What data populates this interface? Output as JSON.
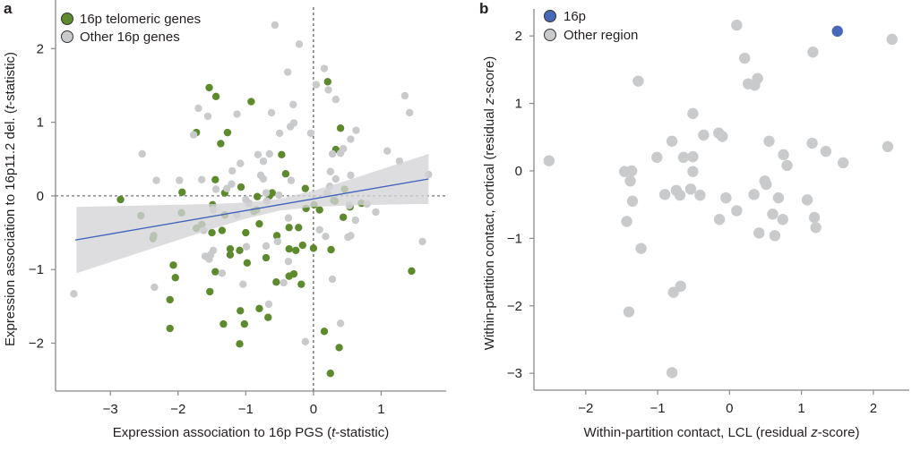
{
  "colors": {
    "telomeric": "#5e8a2e",
    "other": "#c9cacc",
    "highlight": "#4769b8",
    "fit_line": "#3d62b8",
    "band": "#d3d4d6"
  },
  "chart_data": [
    {
      "panel": "a",
      "type": "scatter",
      "xlabel": {
        "pre": "Expression association to 16p PGS (",
        "em": "t",
        "post": "-statistic)"
      },
      "ylabel": {
        "pre": "Expression association to 16p11.2 del. (",
        "em": "t",
        "post": "-statistic)"
      },
      "xlim": [
        -3.81,
        1.96
      ],
      "ylim": [
        -2.65,
        2.66
      ],
      "xticks": [
        -3,
        -2,
        -1,
        0,
        1
      ],
      "yticks": [
        -2,
        -1,
        0,
        1,
        2
      ],
      "xtick_labels": [
        "−3",
        "−2",
        "−1",
        "0",
        "1"
      ],
      "ytick_labels": [
        "−2",
        "−1",
        "0",
        "1",
        "2"
      ],
      "reference_lines": {
        "x": 0,
        "y": 0,
        "style": "dashed"
      },
      "legend": {
        "position": "top-left",
        "entries": [
          "16p telomeric genes",
          "Other 16p genes"
        ]
      },
      "series": [
        {
          "name": "16p telomeric genes",
          "color_key": "telomeric",
          "points": [
            [
              -1.54,
              1.47
            ],
            [
              -1.44,
              1.35
            ],
            [
              -0.92,
              1.28
            ],
            [
              -1.73,
              0.86
            ],
            [
              -1.27,
              0.86
            ],
            [
              -1.37,
              0.71
            ],
            [
              -0.47,
              0.56
            ],
            [
              -0.41,
              0.3
            ],
            [
              -1.45,
              0.22
            ],
            [
              -1.07,
              0.12
            ],
            [
              -1.94,
              0.05
            ],
            [
              -1.31,
              0.04
            ],
            [
              -0.83,
              -0.01
            ],
            [
              -0.61,
              0.04
            ],
            [
              -0.65,
              0.0
            ],
            [
              -0.12,
              0.1
            ],
            [
              0.21,
              1.55
            ],
            [
              0.4,
              0.92
            ],
            [
              0.33,
              0.63
            ],
            [
              -2.85,
              -0.05
            ],
            [
              0.46,
              0.09
            ],
            [
              0.3,
              -0.06
            ],
            [
              0.71,
              -0.1
            ],
            [
              -2.55,
              -0.27
            ],
            [
              -1.95,
              -0.23
            ],
            [
              -1.49,
              -0.12
            ],
            [
              -1.31,
              -0.26
            ],
            [
              -1.73,
              -0.44
            ],
            [
              -1.65,
              -0.39
            ],
            [
              -2.36,
              -0.54
            ],
            [
              -2.37,
              -0.58
            ],
            [
              -1.5,
              -0.5
            ],
            [
              -1.35,
              -0.47
            ],
            [
              -1.0,
              -0.5
            ],
            [
              -0.8,
              -0.38
            ],
            [
              -0.54,
              -0.54
            ],
            [
              -0.36,
              -0.43
            ],
            [
              -0.22,
              -0.43
            ],
            [
              -0.88,
              -0.21
            ],
            [
              -0.84,
              -0.19
            ],
            [
              -0.11,
              -0.17
            ],
            [
              0.01,
              -0.12
            ],
            [
              0.09,
              -0.19
            ],
            [
              0.32,
              -0.07
            ],
            [
              0.54,
              -0.15
            ],
            [
              0.44,
              -0.29
            ],
            [
              -1.23,
              -0.72
            ],
            [
              -1.23,
              -0.8
            ],
            [
              -1.09,
              -0.74
            ],
            [
              -0.36,
              -0.72
            ],
            [
              -0.26,
              -0.74
            ],
            [
              -0.16,
              -0.67
            ],
            [
              0.0,
              -0.71
            ],
            [
              0.26,
              -0.73
            ],
            [
              -0.98,
              -0.91
            ],
            [
              -0.7,
              -0.84
            ],
            [
              -2.07,
              -0.94
            ],
            [
              -2.04,
              -1.11
            ],
            [
              -1.45,
              -1.03
            ],
            [
              -0.36,
              -1.09
            ],
            [
              -0.29,
              -1.06
            ],
            [
              -0.55,
              -1.17
            ],
            [
              -0.18,
              -1.2
            ],
            [
              -1.53,
              -1.3
            ],
            [
              -2.12,
              -1.41
            ],
            [
              -1.08,
              -1.56
            ],
            [
              -0.8,
              -1.53
            ],
            [
              -0.67,
              -1.65
            ],
            [
              -1.33,
              -1.74
            ],
            [
              -1.02,
              -1.74
            ],
            [
              -2.12,
              -1.8
            ],
            [
              -1.09,
              -2.01
            ],
            [
              0.16,
              -1.84
            ],
            [
              0.38,
              -2.06
            ],
            [
              0.25,
              -2.41
            ],
            [
              1.45,
              -1.02
            ]
          ]
        },
        {
          "name": "Other 16p genes",
          "color_key": "other",
          "points": [
            [
              -0.57,
              2.32
            ],
            [
              -0.21,
              2.06
            ],
            [
              -0.38,
              1.68
            ],
            [
              0.16,
              1.73
            ],
            [
              0.04,
              1.51
            ],
            [
              0.22,
              1.44
            ],
            [
              0.33,
              1.31
            ],
            [
              1.35,
              1.36
            ],
            [
              1.42,
              1.13
            ],
            [
              -1.7,
              1.19
            ],
            [
              -1.56,
              1.08
            ],
            [
              -1.13,
              1.11
            ],
            [
              -0.62,
              1.13
            ],
            [
              -0.3,
              1.24
            ],
            [
              -0.29,
              0.99
            ],
            [
              -0.34,
              0.94
            ],
            [
              -0.5,
              0.85
            ],
            [
              -0.04,
              0.85
            ],
            [
              0.63,
              0.89
            ],
            [
              0.55,
              0.77
            ],
            [
              -1.77,
              0.83
            ],
            [
              -2.53,
              0.57
            ],
            [
              -0.82,
              0.56
            ],
            [
              -0.65,
              0.57
            ],
            [
              -0.74,
              0.47
            ],
            [
              -1.08,
              0.44
            ],
            [
              -1.2,
              0.34
            ],
            [
              0.28,
              0.57
            ],
            [
              0.4,
              0.58
            ],
            [
              0.44,
              0.64
            ],
            [
              1.09,
              0.61
            ],
            [
              1.27,
              0.47
            ],
            [
              0.25,
              0.33
            ],
            [
              0.33,
              0.23
            ],
            [
              0.55,
              0.28
            ],
            [
              1.7,
              0.29
            ],
            [
              -2.32,
              0.21
            ],
            [
              -1.98,
              0.21
            ],
            [
              -1.65,
              0.22
            ],
            [
              -0.78,
              0.28
            ],
            [
              -0.74,
              0.23
            ],
            [
              -0.33,
              0.21
            ],
            [
              -1.21,
              0.16
            ],
            [
              -1.28,
              0.1
            ],
            [
              -1.44,
              0.09
            ],
            [
              0.24,
              0.13
            ],
            [
              -0.7,
              0.04
            ],
            [
              -0.51,
              0.01
            ],
            [
              -1.0,
              -0.05
            ],
            [
              -0.95,
              -0.1
            ],
            [
              -0.69,
              -0.07
            ],
            [
              0.2,
              0.04
            ],
            [
              0.79,
              -0.11
            ],
            [
              0.53,
              -0.13
            ],
            [
              -1.48,
              -0.19
            ],
            [
              -1.62,
              -0.47
            ],
            [
              -1.13,
              -0.26
            ],
            [
              -0.37,
              -0.3
            ],
            [
              0.62,
              -0.33
            ],
            [
              0.92,
              -0.22
            ],
            [
              0.09,
              -0.46
            ],
            [
              0.18,
              -0.55
            ],
            [
              0.51,
              -0.56
            ],
            [
              0.55,
              -0.54
            ],
            [
              -0.53,
              -0.62
            ],
            [
              -0.7,
              -0.68
            ],
            [
              -0.99,
              -0.69
            ],
            [
              -1.48,
              -0.74
            ],
            [
              -1.6,
              -0.82
            ],
            [
              -1.54,
              -0.86
            ],
            [
              -1.52,
              -0.8
            ],
            [
              -0.37,
              -0.89
            ],
            [
              -1.35,
              -1.05
            ],
            [
              1.61,
              -0.62
            ],
            [
              -2.35,
              -1.24
            ],
            [
              -3.54,
              -1.33
            ],
            [
              -1.04,
              -1.2
            ],
            [
              -0.44,
              -1.18
            ],
            [
              0.28,
              -1.13
            ],
            [
              -0.66,
              -1.47
            ],
            [
              0.4,
              -1.73
            ],
            [
              -0.12,
              -1.98
            ]
          ]
        }
      ],
      "fit": {
        "line": [
          [
            -3.52,
            -0.6
          ],
          [
            1.7,
            0.23
          ]
        ],
        "band": {
          "x": [
            -3.5,
            -3.0,
            -2.5,
            -2.0,
            -1.5,
            -1.0,
            -0.5,
            0.0,
            0.5,
            1.0,
            1.5,
            1.7
          ],
          "lower": [
            -1.05,
            -0.9,
            -0.75,
            -0.6,
            -0.45,
            -0.31,
            -0.2,
            -0.15,
            -0.13,
            -0.12,
            -0.11,
            -0.11
          ],
          "upper": [
            -0.15,
            -0.14,
            -0.13,
            -0.12,
            -0.11,
            -0.09,
            -0.04,
            0.07,
            0.21,
            0.36,
            0.51,
            0.57
          ]
        }
      }
    },
    {
      "panel": "b",
      "type": "scatter",
      "xlabel": {
        "pre": "Within-partition contact, LCL (residual ",
        "em": "z",
        "post": "-score)"
      },
      "ylabel": {
        "pre": "Within-partition contact, cortical (residual ",
        "em": "z",
        "post": "-score)"
      },
      "xlim": [
        -2.72,
        2.5
      ],
      "ylim": [
        -3.25,
        2.4
      ],
      "xticks": [
        -2,
        -1,
        0,
        1,
        2
      ],
      "yticks": [
        -3,
        -2,
        -1,
        0,
        1,
        2
      ],
      "xtick_labels": [
        "−2",
        "−1",
        "0",
        "1",
        "2"
      ],
      "ytick_labels": [
        "−3",
        "−2",
        "−1",
        "0",
        "1",
        "2"
      ],
      "legend": {
        "position": "top-left",
        "entries": [
          "16p",
          "Other region"
        ]
      },
      "series": [
        {
          "name": "Other region",
          "color_key": "other",
          "points": [
            [
              -2.51,
              0.15
            ],
            [
              -1.46,
              -0.01
            ],
            [
              -1.36,
              0.0
            ],
            [
              -1.38,
              -0.15
            ],
            [
              -1.35,
              -0.45
            ],
            [
              -1.43,
              -0.75
            ],
            [
              -1.23,
              -1.15
            ],
            [
              -1.01,
              0.2
            ],
            [
              -0.8,
              0.44
            ],
            [
              -0.64,
              0.2
            ],
            [
              -0.51,
              0.21
            ],
            [
              -0.51,
              -0.01
            ],
            [
              -0.36,
              0.53
            ],
            [
              -0.15,
              0.56
            ],
            [
              -0.1,
              0.51
            ],
            [
              -0.9,
              -0.35
            ],
            [
              -0.74,
              -0.29
            ],
            [
              -0.69,
              -0.36
            ],
            [
              -0.54,
              -0.27
            ],
            [
              -0.41,
              -0.36
            ],
            [
              -0.05,
              -0.4
            ],
            [
              -0.14,
              -0.72
            ],
            [
              0.1,
              -0.59
            ],
            [
              0.34,
              -0.35
            ],
            [
              0.49,
              -0.15
            ],
            [
              0.51,
              -0.2
            ],
            [
              0.55,
              0.44
            ],
            [
              0.75,
              0.24
            ],
            [
              0.8,
              0.08
            ],
            [
              0.68,
              -0.4
            ],
            [
              0.6,
              -0.64
            ],
            [
              0.74,
              -0.72
            ],
            [
              0.41,
              -0.92
            ],
            [
              0.63,
              -0.96
            ],
            [
              1.15,
              0.41
            ],
            [
              1.34,
              0.29
            ],
            [
              1.58,
              0.12
            ],
            [
              1.08,
              -0.43
            ],
            [
              1.18,
              -0.69
            ],
            [
              1.2,
              -0.84
            ],
            [
              2.2,
              0.36
            ],
            [
              0.1,
              2.16
            ],
            [
              2.26,
              1.95
            ],
            [
              1.16,
              1.76
            ],
            [
              0.21,
              1.67
            ],
            [
              -1.27,
              1.33
            ],
            [
              0.26,
              1.29
            ],
            [
              0.39,
              1.37
            ],
            [
              0.35,
              1.27
            ],
            [
              -0.51,
              0.85
            ],
            [
              -0.68,
              -1.71
            ],
            [
              -0.78,
              -1.8
            ],
            [
              -1.4,
              -2.09
            ],
            [
              -0.8,
              -2.99
            ]
          ]
        },
        {
          "name": "16p",
          "color_key": "highlight",
          "points": [
            [
              1.5,
              2.07
            ]
          ]
        }
      ]
    }
  ]
}
